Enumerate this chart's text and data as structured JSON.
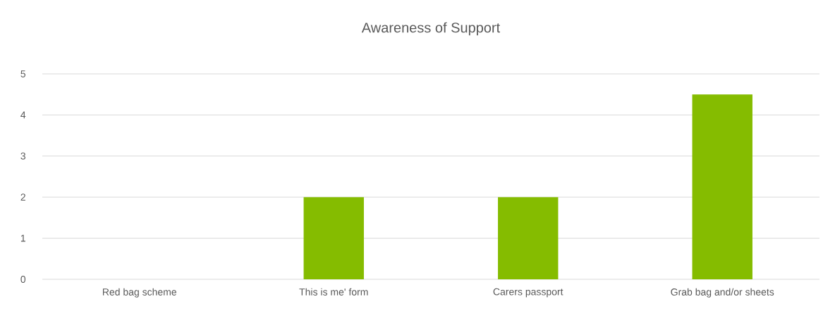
{
  "chart_data": {
    "type": "bar",
    "title": "Awareness of Support",
    "categories": [
      "Red bag scheme",
      "This is me' form",
      "Carers passport",
      "Grab bag and/or sheets"
    ],
    "values": [
      0,
      2,
      2,
      4.5
    ],
    "color": "#85bc00",
    "ylim": [
      0,
      5
    ],
    "yticks": [
      0,
      1,
      2,
      3,
      4,
      5
    ],
    "grid": "y"
  }
}
